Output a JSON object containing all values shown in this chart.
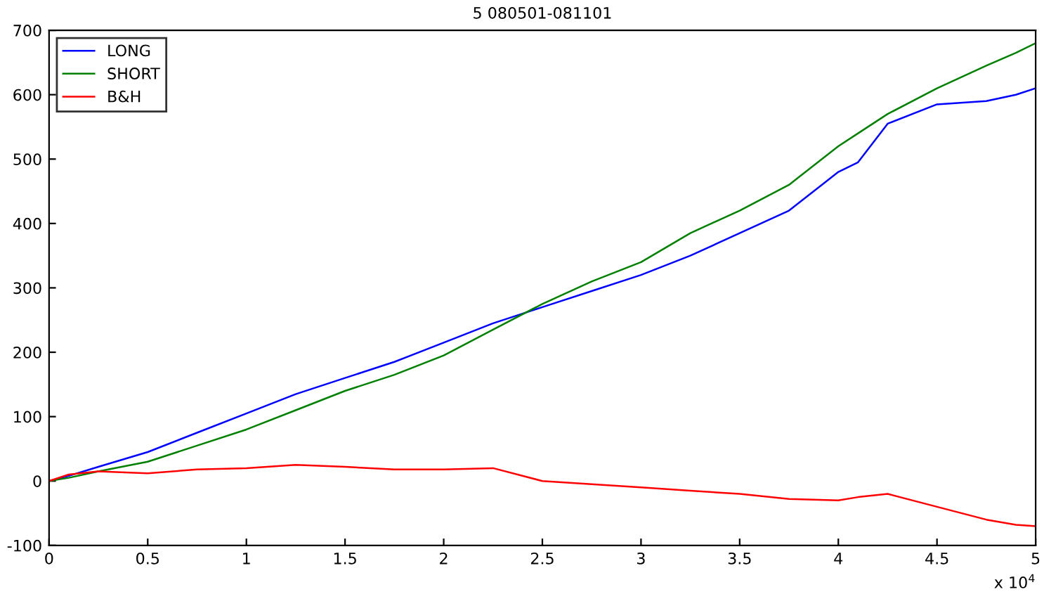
{
  "chart_data": {
    "type": "line",
    "title": "5 080501-081101",
    "x": [
      0,
      0.1,
      0.25,
      0.5,
      0.75,
      1,
      1.25,
      1.5,
      1.75,
      2,
      2.25,
      2.5,
      2.75,
      3,
      3.25,
      3.5,
      3.75,
      4,
      4.1,
      4.25,
      4.5,
      4.75,
      4.9,
      5
    ],
    "series": [
      {
        "name": "LONG",
        "color": "#0000ff",
        "values": [
          0,
          8,
          22,
          45,
          75,
          105,
          135,
          160,
          185,
          215,
          245,
          270,
          295,
          320,
          350,
          385,
          420,
          480,
          495,
          555,
          585,
          590,
          600,
          610
        ]
      },
      {
        "name": "SHORT",
        "color": "#008000",
        "values": [
          0,
          5,
          15,
          30,
          55,
          80,
          110,
          140,
          165,
          195,
          235,
          275,
          310,
          340,
          385,
          420,
          460,
          520,
          540,
          570,
          610,
          645,
          665,
          680
        ]
      },
      {
        "name": "B&H",
        "color": "#ff0000",
        "values": [
          0,
          10,
          15,
          12,
          18,
          20,
          25,
          22,
          18,
          18,
          20,
          0,
          -5,
          -10,
          -15,
          -20,
          -28,
          -30,
          -25,
          -20,
          -40,
          -60,
          -68,
          -70
        ]
      }
    ],
    "xlim": [
      0,
      5
    ],
    "ylim": [
      -100,
      700
    ],
    "xticks": [
      0,
      0.5,
      1,
      1.5,
      2,
      2.5,
      3,
      3.5,
      4,
      4.5,
      5
    ],
    "yticks": [
      -100,
      0,
      100,
      200,
      300,
      400,
      500,
      600,
      700
    ],
    "annotations": [
      "x 10$^{4}$"
    ],
    "grid": false,
    "legend": "top left",
    "marker": "none",
    "line_style": "solid"
  }
}
